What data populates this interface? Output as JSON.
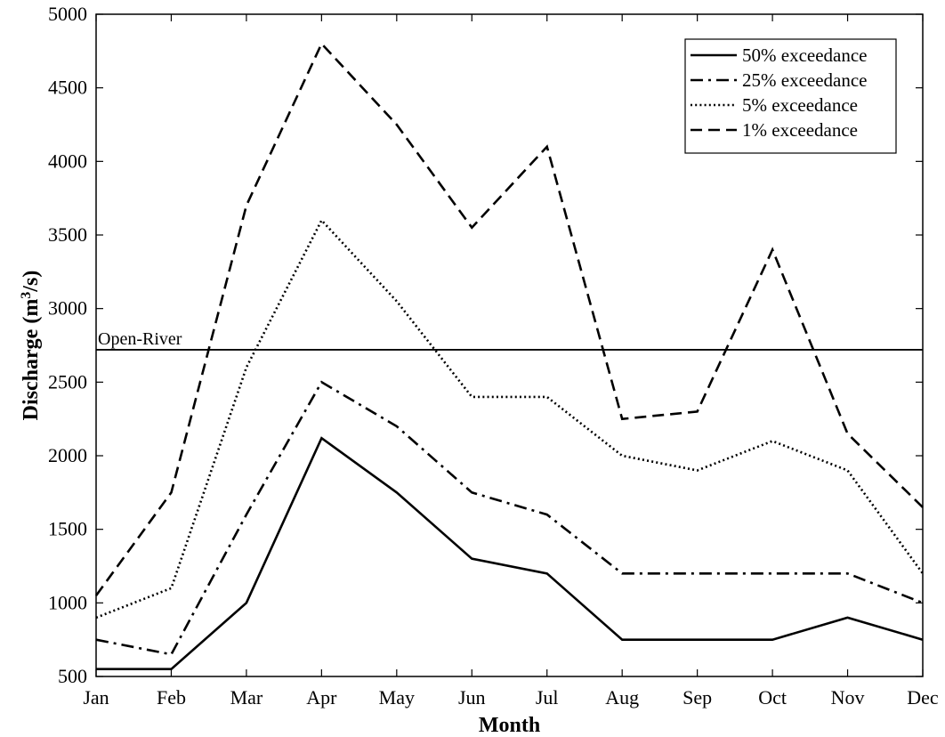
{
  "chart_data": {
    "type": "line",
    "title": "",
    "xlabel": "Month",
    "ylabel_main": "Discharge (m",
    "ylabel_sup": "3",
    "ylabel_tail": "/s)",
    "categories": [
      "Jan",
      "Feb",
      "Mar",
      "Apr",
      "May",
      "Jun",
      "Jul",
      "Aug",
      "Sep",
      "Oct",
      "Nov",
      "Dec"
    ],
    "ylim": [
      500,
      5000
    ],
    "yticks": [
      500,
      1000,
      1500,
      2000,
      2500,
      3000,
      3500,
      4000,
      4500,
      5000
    ],
    "grid": false,
    "legend_position": "top-right",
    "series": [
      {
        "name": "50% exceedance",
        "style": "solid",
        "values": [
          550,
          550,
          1000,
          2120,
          1750,
          1300,
          1200,
          750,
          750,
          750,
          900,
          750
        ]
      },
      {
        "name": "25% exceedance",
        "style": "dashdot",
        "values": [
          750,
          650,
          1600,
          2500,
          2200,
          1750,
          1600,
          1200,
          1200,
          1200,
          1200,
          1000
        ]
      },
      {
        "name": "5% exceedance",
        "style": "dotted",
        "values": [
          900,
          1100,
          2600,
          3600,
          3050,
          2400,
          2400,
          2000,
          1900,
          2100,
          1900,
          1200
        ]
      },
      {
        "name": "1% exceedance",
        "style": "dashed",
        "values": [
          1050,
          1750,
          3700,
          4800,
          4250,
          3550,
          4100,
          2250,
          2300,
          3400,
          2150,
          1650
        ]
      }
    ],
    "reference_line": {
      "label": "Open-River",
      "value": 2720
    },
    "color": "#000000"
  }
}
